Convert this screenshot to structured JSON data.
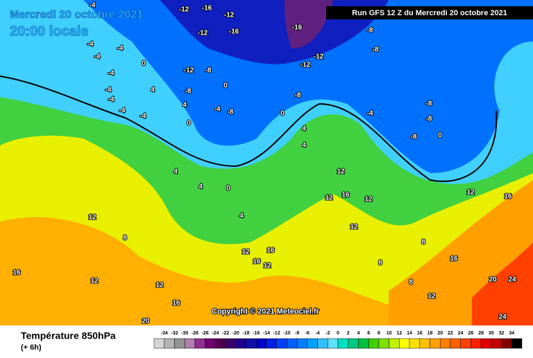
{
  "header": {
    "date": "Mercredi 20 octobre 2021",
    "time": "20:00 locale",
    "run": "Run GFS 12 Z du Mercredi 20 octobre 2021"
  },
  "footer": {
    "field": "Température 850hPa",
    "lead": "(+ 6h)",
    "copyright": "Copyright © 2021 Meteociel.fr"
  },
  "legend": {
    "ticks": [
      -34,
      -32,
      -30,
      -28,
      -26,
      -24,
      -22,
      -20,
      -18,
      -16,
      -14,
      -12,
      -10,
      -8,
      -6,
      -4,
      -2,
      0,
      2,
      4,
      6,
      8,
      10,
      12,
      14,
      16,
      18,
      20,
      22,
      24,
      26,
      28,
      30,
      32,
      34
    ],
    "colors": [
      "#d4d4d4",
      "#b4b4b4",
      "#949494",
      "#b080b0",
      "#903090",
      "#700070",
      "#500050",
      "#380068",
      "#200088",
      "#1010a8",
      "#0000c8",
      "#0020e8",
      "#0040ff",
      "#0060ff",
      "#0080ff",
      "#00a0ff",
      "#30c0ff",
      "#60e0ff",
      "#00e0c0",
      "#00c880",
      "#00c040",
      "#40d000",
      "#80e000",
      "#c0f000",
      "#ffff00",
      "#ffe000",
      "#ffc000",
      "#ffa000",
      "#ff8000",
      "#ff6000",
      "#ff4000",
      "#ff2000",
      "#e00000",
      "#c00000",
      "#800000",
      "#000000"
    ]
  },
  "contour_labels": [
    -4,
    -12,
    -16,
    -12,
    -12,
    -16,
    -16,
    -8,
    -8,
    -12,
    -12,
    -12,
    -8,
    -4,
    -4,
    -4,
    0,
    -4,
    4,
    -8,
    0,
    -4,
    -4,
    -4,
    -4,
    4,
    -4,
    -8,
    0,
    0,
    -8,
    -4,
    -8,
    -8,
    -8,
    0,
    4,
    4,
    4,
    4,
    0,
    12,
    12,
    16,
    12,
    12,
    12,
    8,
    4,
    12,
    16,
    16,
    12,
    12,
    12,
    16,
    20,
    16,
    16,
    20,
    24,
    24,
    16,
    12,
    12,
    8,
    8,
    8
  ]
}
